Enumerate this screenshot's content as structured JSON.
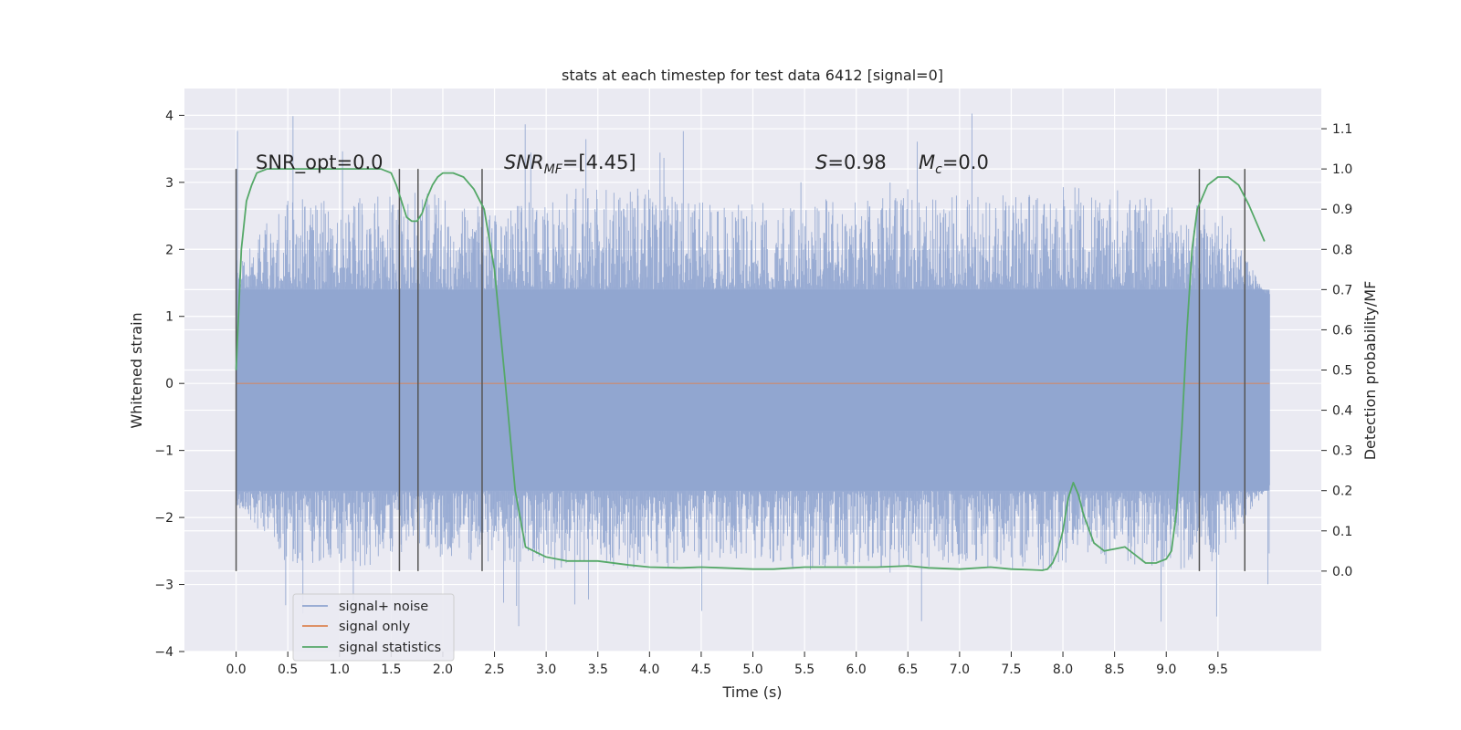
{
  "chart_data": {
    "type": "line",
    "title": "stats at each timestep for test data 6412 [signal=0]",
    "xlabel": "Time (s)",
    "ylabel": "Whitened strain",
    "y2label": "Detection probability/MF",
    "xlim": [
      -0.5,
      10.5
    ],
    "ylim": [
      -4,
      4.4
    ],
    "y2lim": [
      -0.2,
      1.2
    ],
    "xticks": [
      "0.0",
      "0.5",
      "1.0",
      "1.5",
      "2.0",
      "2.5",
      "3.0",
      "3.5",
      "4.0",
      "4.5",
      "5.0",
      "5.5",
      "6.0",
      "6.5",
      "7.0",
      "7.5",
      "8.0",
      "8.5",
      "9.0",
      "9.5"
    ],
    "yticks": [
      "4",
      "3",
      "2",
      "1",
      "0",
      "−1",
      "−2",
      "−3",
      "−4"
    ],
    "y2ticks": [
      "1.1",
      "1.0",
      "0.9",
      "0.8",
      "0.7",
      "0.6",
      "0.5",
      "0.4",
      "0.3",
      "0.2",
      "0.1",
      "0.0"
    ],
    "grid": true,
    "legend_position": "lower-left",
    "annotations": {
      "snr_opt": "SNR_opt=0.0",
      "snr_mf_prefix": "SNR",
      "snr_mf_sub": "MF",
      "snr_mf_value": "=[4.45]",
      "s_prefix": "S",
      "s_value": "=0.98",
      "mc_prefix": "M",
      "mc_sub": "c",
      "mc_value": "=0.0"
    },
    "series": [
      {
        "name": "signal+ noise",
        "color": "#8fa4cf",
        "axis": "left",
        "x_range": [
          0.0,
          10.0
        ],
        "envelope": {
          "core": [
            -1.6,
            1.4
          ],
          "peak_max": 4.05,
          "peak_min": -3.65,
          "x": [
            0.0,
            0.5,
            1.0,
            1.5,
            2.0,
            2.5,
            3.0,
            3.5,
            4.0,
            4.5,
            5.0,
            5.5,
            6.0,
            6.5,
            7.0,
            7.5,
            8.0,
            8.5,
            9.0,
            9.5,
            10.0
          ],
          "upper": [
            1.9,
            2.8,
            2.8,
            2.8,
            2.9,
            2.6,
            2.8,
            3.0,
            2.9,
            2.7,
            2.7,
            2.8,
            2.7,
            2.9,
            2.8,
            2.9,
            3.0,
            2.9,
            2.8,
            2.7,
            1.2
          ],
          "lower": [
            -1.8,
            -2.7,
            -2.7,
            -2.8,
            -2.6,
            -2.7,
            -2.8,
            -2.7,
            -2.8,
            -2.7,
            -2.7,
            -2.8,
            -2.7,
            -2.8,
            -2.7,
            -2.8,
            -2.8,
            -2.7,
            -2.8,
            -2.7,
            -1.5
          ]
        }
      },
      {
        "name": "signal only",
        "color": "#dd8452",
        "axis": "left",
        "x": [
          0.0,
          10.0
        ],
        "y": [
          0.0,
          0.0
        ]
      },
      {
        "name": "signal statistics",
        "color": "#55a868",
        "axis": "right",
        "x": [
          0.0,
          0.05,
          0.1,
          0.15,
          0.2,
          0.3,
          0.5,
          0.8,
          1.1,
          1.3,
          1.4,
          1.5,
          1.55,
          1.6,
          1.65,
          1.7,
          1.75,
          1.8,
          1.85,
          1.9,
          1.95,
          2.0,
          2.1,
          2.2,
          2.3,
          2.4,
          2.5,
          2.6,
          2.7,
          2.8,
          3.0,
          3.2,
          3.5,
          3.8,
          4.0,
          4.3,
          4.5,
          4.7,
          5.0,
          5.2,
          5.5,
          5.8,
          6.0,
          6.2,
          6.5,
          6.7,
          7.0,
          7.3,
          7.5,
          7.7,
          7.8,
          7.85,
          7.9,
          7.95,
          8.0,
          8.05,
          8.1,
          8.15,
          8.2,
          8.3,
          8.4,
          8.5,
          8.6,
          8.7,
          8.8,
          8.9,
          9.0,
          9.05,
          9.1,
          9.15,
          9.2,
          9.25,
          9.3,
          9.4,
          9.5,
          9.6,
          9.7,
          9.8,
          9.9,
          9.95
        ],
        "y": [
          0.5,
          0.8,
          0.92,
          0.96,
          0.99,
          1.0,
          1.0,
          1.0,
          1.0,
          1.0,
          1.0,
          0.99,
          0.96,
          0.92,
          0.88,
          0.87,
          0.87,
          0.89,
          0.93,
          0.96,
          0.98,
          0.99,
          0.99,
          0.98,
          0.95,
          0.9,
          0.75,
          0.48,
          0.2,
          0.06,
          0.035,
          0.025,
          0.025,
          0.015,
          0.01,
          0.008,
          0.01,
          0.008,
          0.005,
          0.005,
          0.01,
          0.01,
          0.01,
          0.01,
          0.013,
          0.008,
          0.005,
          0.01,
          0.005,
          0.003,
          0.002,
          0.005,
          0.02,
          0.05,
          0.1,
          0.18,
          0.22,
          0.19,
          0.14,
          0.07,
          0.05,
          0.055,
          0.06,
          0.04,
          0.02,
          0.02,
          0.03,
          0.05,
          0.15,
          0.35,
          0.6,
          0.8,
          0.9,
          0.96,
          0.98,
          0.98,
          0.96,
          0.91,
          0.85,
          0.82
        ]
      }
    ],
    "vertical_markers": [
      0.0,
      1.58,
      1.76,
      2.38,
      9.32,
      9.76
    ],
    "vertical_marker_range": [
      -2.8,
      3.2
    ]
  }
}
